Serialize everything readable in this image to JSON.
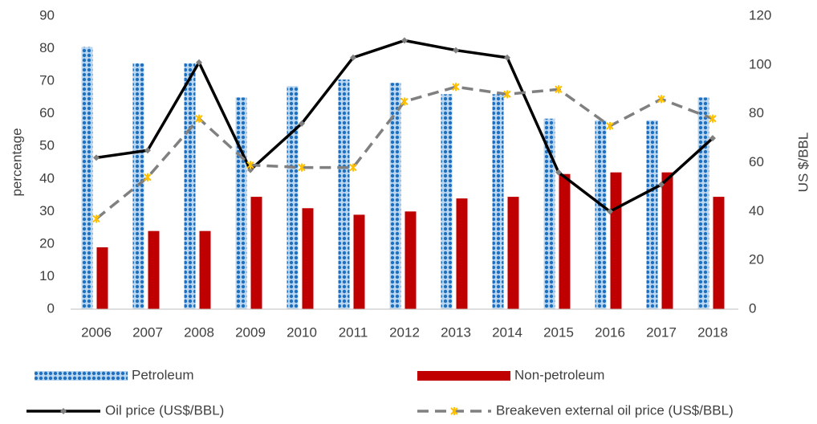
{
  "chart_data": {
    "type": "bar",
    "y_label": "percentage",
    "y2_label": "US $/BBL",
    "categories": [
      "2006",
      "2007",
      "2008",
      "2009",
      "2010",
      "2011",
      "2012",
      "2013",
      "2014",
      "2015",
      "2016",
      "2017",
      "2018"
    ],
    "series": [
      {
        "name": "Petroleum",
        "type": "bar",
        "color": "#1f70c1",
        "values": [
          80.5,
          75.5,
          75.5,
          65,
          68.5,
          70.5,
          69.5,
          66,
          66,
          58.5,
          58,
          58,
          65
        ]
      },
      {
        "name": "Non-petroleum",
        "type": "bar",
        "color": "#c00000",
        "values": [
          19,
          24,
          24,
          34.5,
          31,
          29,
          30,
          34,
          34.5,
          41.5,
          42,
          42,
          34.5
        ]
      },
      {
        "name": "Oil price (US$/BBL)",
        "type": "line",
        "axis": "y2",
        "color": "#000000",
        "marker_color": "#808080",
        "dashed": false,
        "values": [
          62,
          65,
          101,
          57,
          76,
          103,
          110,
          106,
          103,
          56,
          40,
          51,
          70
        ]
      },
      {
        "name": "Breakeven external oil price (US$/BBL)",
        "type": "line",
        "axis": "y2",
        "color": "#808080",
        "marker_color": "#ffc000",
        "dashed": true,
        "values": [
          37,
          54,
          78,
          59,
          58,
          58,
          85,
          91,
          88,
          90,
          75,
          86,
          78
        ]
      }
    ],
    "ylim": [
      0,
      90
    ],
    "yticks": [
      0,
      10,
      20,
      30,
      40,
      50,
      60,
      70,
      80,
      90
    ],
    "y2lim": [
      0,
      120
    ],
    "y2ticks": [
      0,
      20,
      40,
      60,
      80,
      100,
      120
    ],
    "grid": false
  }
}
